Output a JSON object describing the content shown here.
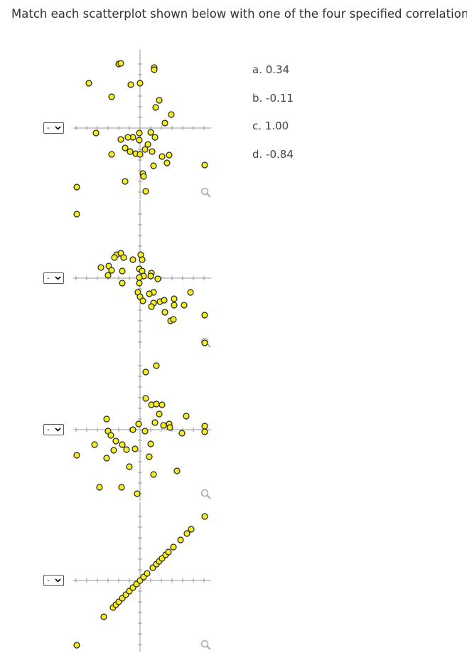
{
  "question": "Match each scatterplot shown below with one of the four specified correlations.",
  "options": [
    "a. 0.34",
    "b. -0.11",
    "c. 1.00",
    "d. -0.84"
  ],
  "plots": [
    {
      "select": "-",
      "points": [
        [
          -30,
          90
        ],
        [
          -27,
          91
        ],
        [
          20,
          85
        ],
        [
          20,
          82
        ],
        [
          -72,
          63
        ],
        [
          -13,
          61
        ],
        [
          0,
          63
        ],
        [
          -40,
          44
        ],
        [
          27,
          39
        ],
        [
          22,
          29
        ],
        [
          44,
          19
        ],
        [
          35,
          7
        ],
        [
          -62,
          -7
        ],
        [
          -10,
          -13
        ],
        [
          -1,
          -7
        ],
        [
          15,
          -6
        ],
        [
          21,
          -13
        ],
        [
          -27,
          -16
        ],
        [
          -17,
          -13
        ],
        [
          -1,
          -17
        ],
        [
          11,
          -23
        ],
        [
          -21,
          -28
        ],
        [
          -14,
          -33
        ],
        [
          -6,
          -36
        ],
        [
          0,
          -37
        ],
        [
          -40,
          -37
        ],
        [
          7,
          -30
        ],
        [
          17,
          -33
        ],
        [
          31,
          -40
        ],
        [
          41,
          -38
        ],
        [
          38,
          -49
        ],
        [
          19,
          -53
        ],
        [
          91,
          -52
        ],
        [
          4,
          -64
        ],
        [
          5,
          -68
        ],
        [
          -21,
          -75
        ],
        [
          8,
          -89
        ],
        [
          -89,
          -83
        ],
        [
          -89,
          -121
        ]
      ]
    },
    {
      "select": "-",
      "points": [
        [
          -33,
          33
        ],
        [
          -27,
          35
        ],
        [
          -36,
          29
        ],
        [
          -23,
          29
        ],
        [
          1,
          33
        ],
        [
          3,
          26
        ],
        [
          -10,
          26
        ],
        [
          -55,
          15
        ],
        [
          -44,
          17
        ],
        [
          -40,
          11
        ],
        [
          -25,
          10
        ],
        [
          -1,
          13
        ],
        [
          3,
          10
        ],
        [
          16,
          7
        ],
        [
          5,
          3
        ],
        [
          15,
          3
        ],
        [
          25,
          -1
        ],
        [
          -45,
          4
        ],
        [
          -1,
          1
        ],
        [
          -25,
          -7
        ],
        [
          -1,
          -7
        ],
        [
          19,
          -20
        ],
        [
          13,
          -22
        ],
        [
          -3,
          -20
        ],
        [
          0,
          -26
        ],
        [
          4,
          -32
        ],
        [
          19,
          -35
        ],
        [
          28,
          -33
        ],
        [
          34,
          -31
        ],
        [
          48,
          -29
        ],
        [
          48,
          -38
        ],
        [
          62,
          -38
        ],
        [
          71,
          -20
        ],
        [
          35,
          -48
        ],
        [
          16,
          -40
        ],
        [
          43,
          -60
        ],
        [
          47,
          -58
        ],
        [
          91,
          -52
        ],
        [
          91,
          -91
        ]
      ]
    },
    {
      "select": "-",
      "points": [
        [
          8,
          81
        ],
        [
          23,
          90
        ],
        [
          8,
          44
        ],
        [
          16,
          35
        ],
        [
          23,
          36
        ],
        [
          31,
          35
        ],
        [
          27,
          22
        ],
        [
          65,
          19
        ],
        [
          -47,
          15
        ],
        [
          21,
          10
        ],
        [
          33,
          6
        ],
        [
          41,
          8
        ],
        [
          42,
          3
        ],
        [
          91,
          5
        ],
        [
          91,
          -3
        ],
        [
          59,
          -5
        ],
        [
          -2,
          8
        ],
        [
          -10,
          0
        ],
        [
          7,
          -2
        ],
        [
          -45,
          -2
        ],
        [
          -41,
          -8
        ],
        [
          -34,
          -16
        ],
        [
          -64,
          -21
        ],
        [
          -25,
          -21
        ],
        [
          -37,
          -29
        ],
        [
          -19,
          -28
        ],
        [
          -7,
          -27
        ],
        [
          15,
          -20
        ],
        [
          13,
          -38
        ],
        [
          -47,
          -40
        ],
        [
          -89,
          -36
        ],
        [
          -15,
          -52
        ],
        [
          52,
          -58
        ],
        [
          19,
          -63
        ],
        [
          -57,
          -81
        ],
        [
          -26,
          -81
        ],
        [
          -4,
          -90
        ]
      ]
    },
    {
      "select": "-",
      "points": [
        [
          -89,
          -91
        ],
        [
          -51,
          -51
        ],
        [
          -38,
          -38
        ],
        [
          -34,
          -34
        ],
        [
          -30,
          -30
        ],
        [
          -25,
          -25
        ],
        [
          -20,
          -20
        ],
        [
          -15,
          -15
        ],
        [
          -10,
          -10
        ],
        [
          -5,
          -5
        ],
        [
          0,
          0
        ],
        [
          5,
          5
        ],
        [
          10,
          10
        ],
        [
          18,
          18
        ],
        [
          23,
          23
        ],
        [
          27,
          27
        ],
        [
          31,
          31
        ],
        [
          36,
          36
        ],
        [
          40,
          40
        ],
        [
          47,
          47
        ],
        [
          57,
          57
        ],
        [
          66,
          66
        ],
        [
          72,
          72
        ],
        [
          91,
          90
        ]
      ]
    }
  ]
}
